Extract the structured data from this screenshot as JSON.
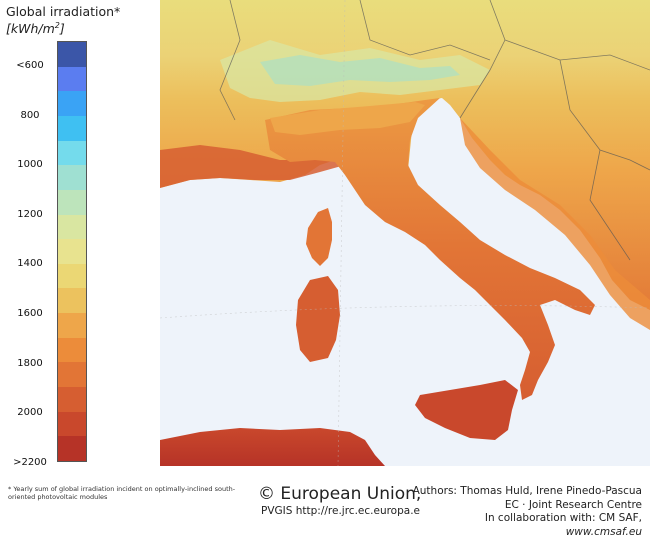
{
  "legend": {
    "title": "Global irradiation*",
    "unit_base": "[kWh/m",
    "unit_sup": "2",
    "unit_close": "]",
    "colors": [
      "#3b56a8",
      "#5b7df0",
      "#3aa3f5",
      "#3fc0f2",
      "#74dbec",
      "#9fe0d2",
      "#bde4bb",
      "#d9e6a1",
      "#e8e38f",
      "#ebd774",
      "#ecc25e",
      "#eea64a",
      "#ec8c3a",
      "#e27536",
      "#d65e31",
      "#c9482c",
      "#b63327"
    ],
    "labels": [
      "<600",
      "800",
      "1000",
      "1200",
      "1400",
      "1600",
      "1800",
      "2000",
      ">2200"
    ]
  },
  "map": {
    "sea_color": "#eef3fa",
    "regions": [
      "Italy",
      "Sardinia",
      "Corsica",
      "Sicily",
      "Balkans",
      "Alps",
      "North Africa",
      "Southern France"
    ]
  },
  "footer": {
    "footnote": "* Yearly sum of global irradiation incident on optimally-inclined south-oriented photovoltaic modules",
    "copyright": "© European Union,",
    "pvgis": "PVGIS http://re.jrc.ec.europa.e",
    "authors": "Authors: Thomas Huld, Irene Pinedo-Pascua",
    "institution": "EC · Joint Research Centre",
    "collab_prefix": "In collaboration with: CM SAF, ",
    "collab_site": "www.cmsaf.eu"
  }
}
